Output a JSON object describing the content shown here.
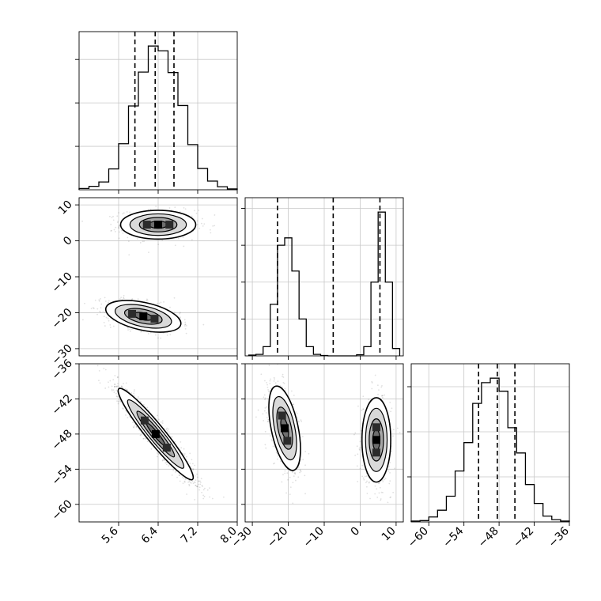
{
  "chart_data": {
    "type": "corner",
    "title": "",
    "parameters": [
      {
        "range": [
          4.8,
          8.0
        ],
        "ticks": [
          5.6,
          6.4,
          7.2,
          8.0
        ]
      },
      {
        "range": [
          -32,
          12
        ],
        "ticks": [
          -30,
          -20,
          -10,
          0,
          10
        ]
      },
      {
        "range": [
          -63,
          -36
        ],
        "ticks": [
          -60,
          -54,
          -48,
          -42,
          -36
        ]
      }
    ],
    "tick_labels": {
      "p0": [
        "5.6",
        "6.4",
        "7.2",
        "8.0"
      ],
      "p1": [
        "−30",
        "−20",
        "−10",
        "0",
        "10"
      ],
      "p2": [
        "−60",
        "−54",
        "−48",
        "−42",
        "−36"
      ]
    },
    "grid": true,
    "quantile_lines": {
      "p0": [
        5.93,
        6.34,
        6.72
      ],
      "p1": [
        -23.0,
        -7.5,
        5.5
      ],
      "p2": [
        -51.5,
        -48.3,
        -45.3
      ]
    },
    "histograms": [
      {
        "param": "p0",
        "bin_edges": [
          4.8,
          5.0,
          5.2,
          5.4,
          5.6,
          5.8,
          6.0,
          6.2,
          6.4,
          6.6,
          6.8,
          7.0,
          7.2,
          7.4,
          7.6,
          7.8,
          8.0
        ],
        "counts": [
          0.3,
          0.8,
          1.8,
          4.8,
          10.6,
          19.3,
          27.1,
          33.1,
          32.0,
          27.0,
          19.4,
          10.4,
          4.9,
          2.0,
          0.7,
          0.2
        ]
      },
      {
        "param": "p1",
        "bin_edges": [
          -31,
          -29,
          -27,
          -25,
          -23,
          -21,
          -19,
          -17,
          -15,
          -13,
          -11,
          -9,
          -7,
          -5,
          -3,
          -1,
          1,
          3,
          5,
          7,
          9,
          11
        ],
        "counts": [
          0.2,
          0.4,
          2.5,
          14,
          30,
          32,
          23,
          10,
          2.5,
          0.4,
          0.1,
          0,
          0,
          0,
          0,
          0.3,
          2.5,
          20,
          39,
          20,
          2
        ]
      },
      {
        "param": "p2",
        "bin_edges": [
          -63,
          -61.5,
          -60,
          -58.5,
          -57,
          -55.5,
          -54,
          -52.5,
          -51,
          -49.5,
          -48,
          -46.5,
          -45,
          -43.5,
          -42,
          -40.5,
          -39,
          -37.5,
          -36
        ],
        "counts": [
          0.2,
          0.3,
          1.1,
          2.6,
          5.7,
          11.3,
          17.6,
          26.3,
          30.9,
          31.9,
          29.0,
          20.9,
          15.3,
          8.3,
          4.1,
          1.3,
          0.5,
          0.2
        ]
      }
    ],
    "scatter_2d": [
      {
        "x": "p0",
        "y": "p1",
        "modes": [
          {
            "cx": 6.4,
            "cy": 4.5,
            "sx": 0.38,
            "sy": 2.0,
            "corr": 0.0,
            "weight": 0.5
          },
          {
            "cx": 6.1,
            "cy": -21.0,
            "sx": 0.38,
            "sy": 2.2,
            "corr": -0.45,
            "weight": 0.5
          }
        ],
        "contour_levels": [
          0.5,
          1.0,
          1.5,
          2.0
        ]
      },
      {
        "x": "p0",
        "y": "p2",
        "modes": [
          {
            "cx": 6.35,
            "cy": -48.0,
            "sx": 0.38,
            "sy": 3.9,
            "corr": -0.95,
            "weight": 1.0
          }
        ],
        "contour_levels": [
          0.5,
          1.0,
          1.5,
          2.0
        ]
      },
      {
        "x": "p1",
        "y": "p2",
        "modes": [
          {
            "cx": -21.0,
            "cy": -47.0,
            "sx": 2.2,
            "sy": 3.6,
            "corr": -0.5,
            "weight": 0.5
          },
          {
            "cx": 4.5,
            "cy": -49.0,
            "sx": 2.0,
            "sy": 3.6,
            "corr": 0.0,
            "weight": 0.5
          }
        ],
        "contour_levels": [
          0.5,
          1.0,
          1.5,
          2.0
        ]
      }
    ]
  }
}
